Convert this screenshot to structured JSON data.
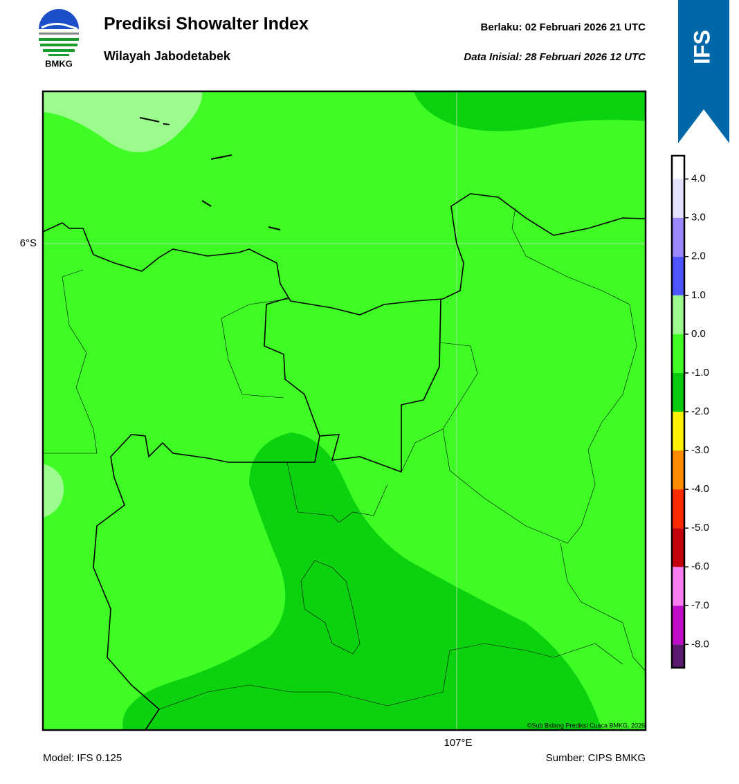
{
  "header": {
    "title": "Prediksi Showalter Index",
    "subtitle": "Wilayah Jabodetabek",
    "valid": "Berlaku:  02 Februari 2026 21 UTC",
    "initial": "Data Inisial:  28 Februari 2026 12 UTC",
    "logo_text": "BMKG",
    "model_badge": "IFS"
  },
  "map": {
    "lat_label": "6°S",
    "lon_label": "107°E",
    "credit": "©Sub Bidang Prediksi Cuaca BMKG, 2026"
  },
  "colorbar": {
    "lim": [
      -8.6,
      4.6
    ],
    "ticks": [
      {
        "value": -8,
        "label": "-8.0"
      },
      {
        "value": -7,
        "label": "-7.0"
      },
      {
        "value": -6,
        "label": "-6.0"
      },
      {
        "value": -5,
        "label": "-5.0"
      },
      {
        "value": -4,
        "label": "-4.0"
      },
      {
        "value": -3,
        "label": "-3.0"
      },
      {
        "value": -2,
        "label": "-2.0"
      },
      {
        "value": -1,
        "label": "-1.0"
      },
      {
        "value": 0,
        "label": "0.0"
      },
      {
        "value": 1,
        "label": "1.0"
      },
      {
        "value": 2,
        "label": "2.0"
      },
      {
        "value": 3,
        "label": "3.0"
      },
      {
        "value": 4,
        "label": "4.0"
      }
    ],
    "colors": [
      "#5a1a6e",
      "#c10cc8",
      "#f77ef0",
      "#c4000c",
      "#ff2a00",
      "#ff8c00",
      "#fff200",
      "#0bc90f",
      "#3efc24",
      "#9bfb8c",
      "#4c55ff",
      "#9b87ff",
      "#e2e2ff",
      "#ffffff"
    ]
  },
  "footer": {
    "model": "Model: IFS 0.125",
    "source": "Sumber: CIPS BMKG"
  }
}
